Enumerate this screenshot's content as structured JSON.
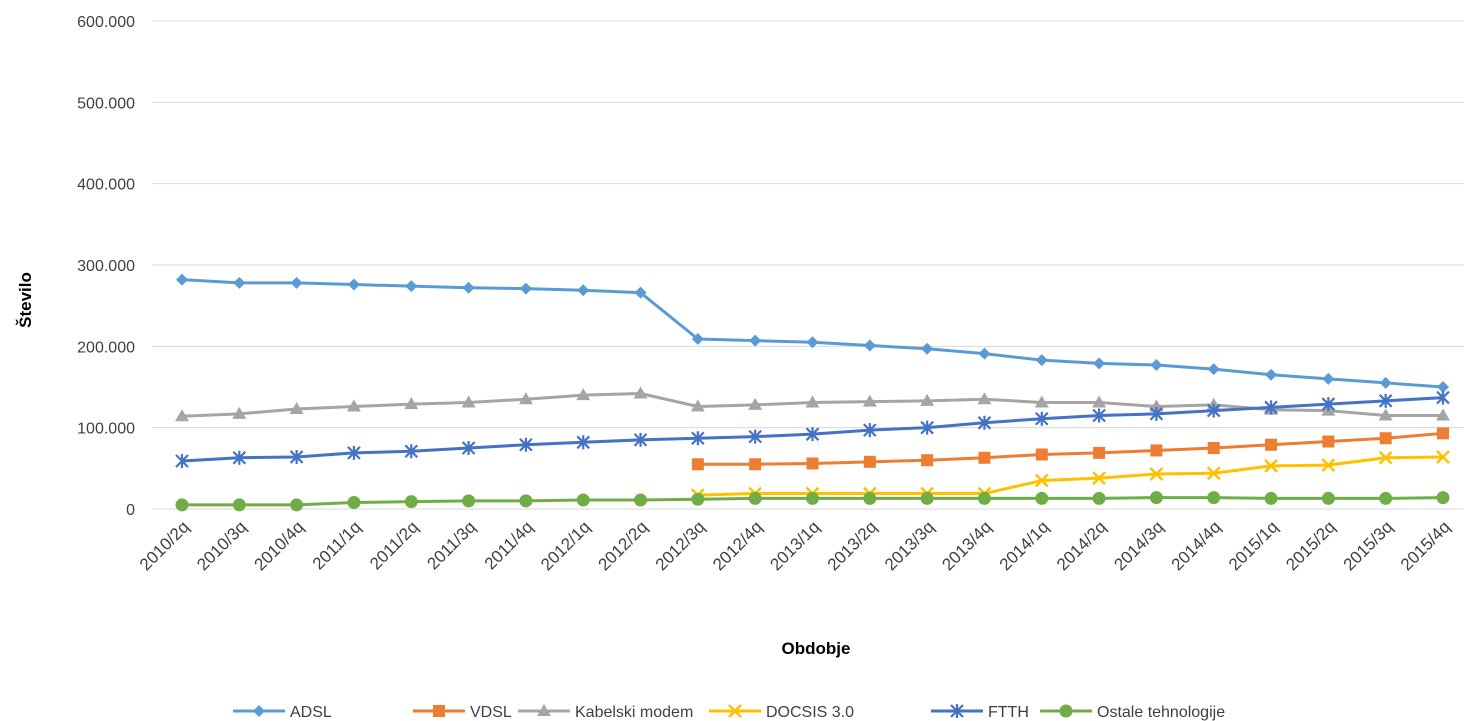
{
  "chart_data": {
    "type": "line",
    "xlabel": "Obdobje",
    "ylabel": "Število",
    "ylim": [
      0,
      600000
    ],
    "yticks": [
      "0",
      "100.000",
      "200.000",
      "300.000",
      "400.000",
      "500.000",
      "600.000"
    ],
    "ytick_values": [
      0,
      100000,
      200000,
      300000,
      400000,
      500000,
      600000
    ],
    "grid": "horizontal",
    "legend_position": "bottom",
    "categories": [
      "2010/2q",
      "2010/3q",
      "2010/4q",
      "2011/1q",
      "2011/2q",
      "2011/3q",
      "2011/4q",
      "2012/1q",
      "2012/2q",
      "2012/3q",
      "2012/4q",
      "2013/1q",
      "2013/2q",
      "2013/3q",
      "2013/4q",
      "2014/1q",
      "2014/2q",
      "2014/3q",
      "2014/4q",
      "2015/1q",
      "2015/2q",
      "2015/3q",
      "2015/4q"
    ],
    "series": [
      {
        "name": "ADSL",
        "color": "#5B9BD5",
        "marker": "diamond",
        "values": [
          282000,
          278000,
          278000,
          276000,
          274000,
          272000,
          271000,
          269000,
          266000,
          209000,
          207000,
          205000,
          201000,
          197000,
          191000,
          183000,
          179000,
          177000,
          172000,
          165000,
          160000,
          155000,
          150000
        ]
      },
      {
        "name": "VDSL",
        "color": "#ED7D31",
        "marker": "square",
        "values": [
          null,
          null,
          null,
          null,
          null,
          null,
          null,
          null,
          null,
          55000,
          55000,
          56000,
          58000,
          60000,
          63000,
          67000,
          69000,
          72000,
          75000,
          79000,
          83000,
          87000,
          93000
        ]
      },
      {
        "name": "Kabelski modem",
        "color": "#A5A5A5",
        "marker": "triangle",
        "values": [
          114000,
          117000,
          123000,
          126000,
          129000,
          131000,
          135000,
          140000,
          142000,
          126000,
          128000,
          131000,
          132000,
          133000,
          135000,
          131000,
          131000,
          126000,
          128000,
          122000,
          121000,
          115000,
          115000
        ]
      },
      {
        "name": "DOCSIS 3.0",
        "color": "#FFC000",
        "marker": "x",
        "values": [
          null,
          null,
          null,
          null,
          null,
          null,
          null,
          null,
          null,
          17000,
          19000,
          19000,
          19000,
          19000,
          19000,
          35000,
          38000,
          43000,
          44000,
          53000,
          54000,
          63000,
          64000
        ]
      },
      {
        "name": "FTTH",
        "color": "#4472C4",
        "marker": "star",
        "values": [
          59000,
          63000,
          64000,
          69000,
          71000,
          75000,
          79000,
          82000,
          85000,
          87000,
          89000,
          92000,
          97000,
          100000,
          106000,
          111000,
          115000,
          117000,
          121000,
          125000,
          129000,
          133000,
          137000
        ]
      },
      {
        "name": "Ostale tehnologije",
        "color": "#70AD47",
        "marker": "circle",
        "values": [
          5000,
          5000,
          5000,
          8000,
          9000,
          10000,
          10000,
          11000,
          11000,
          12000,
          13000,
          13000,
          13000,
          13000,
          13000,
          13000,
          13000,
          14000,
          14000,
          13000,
          13000,
          13000,
          14000
        ]
      }
    ]
  }
}
